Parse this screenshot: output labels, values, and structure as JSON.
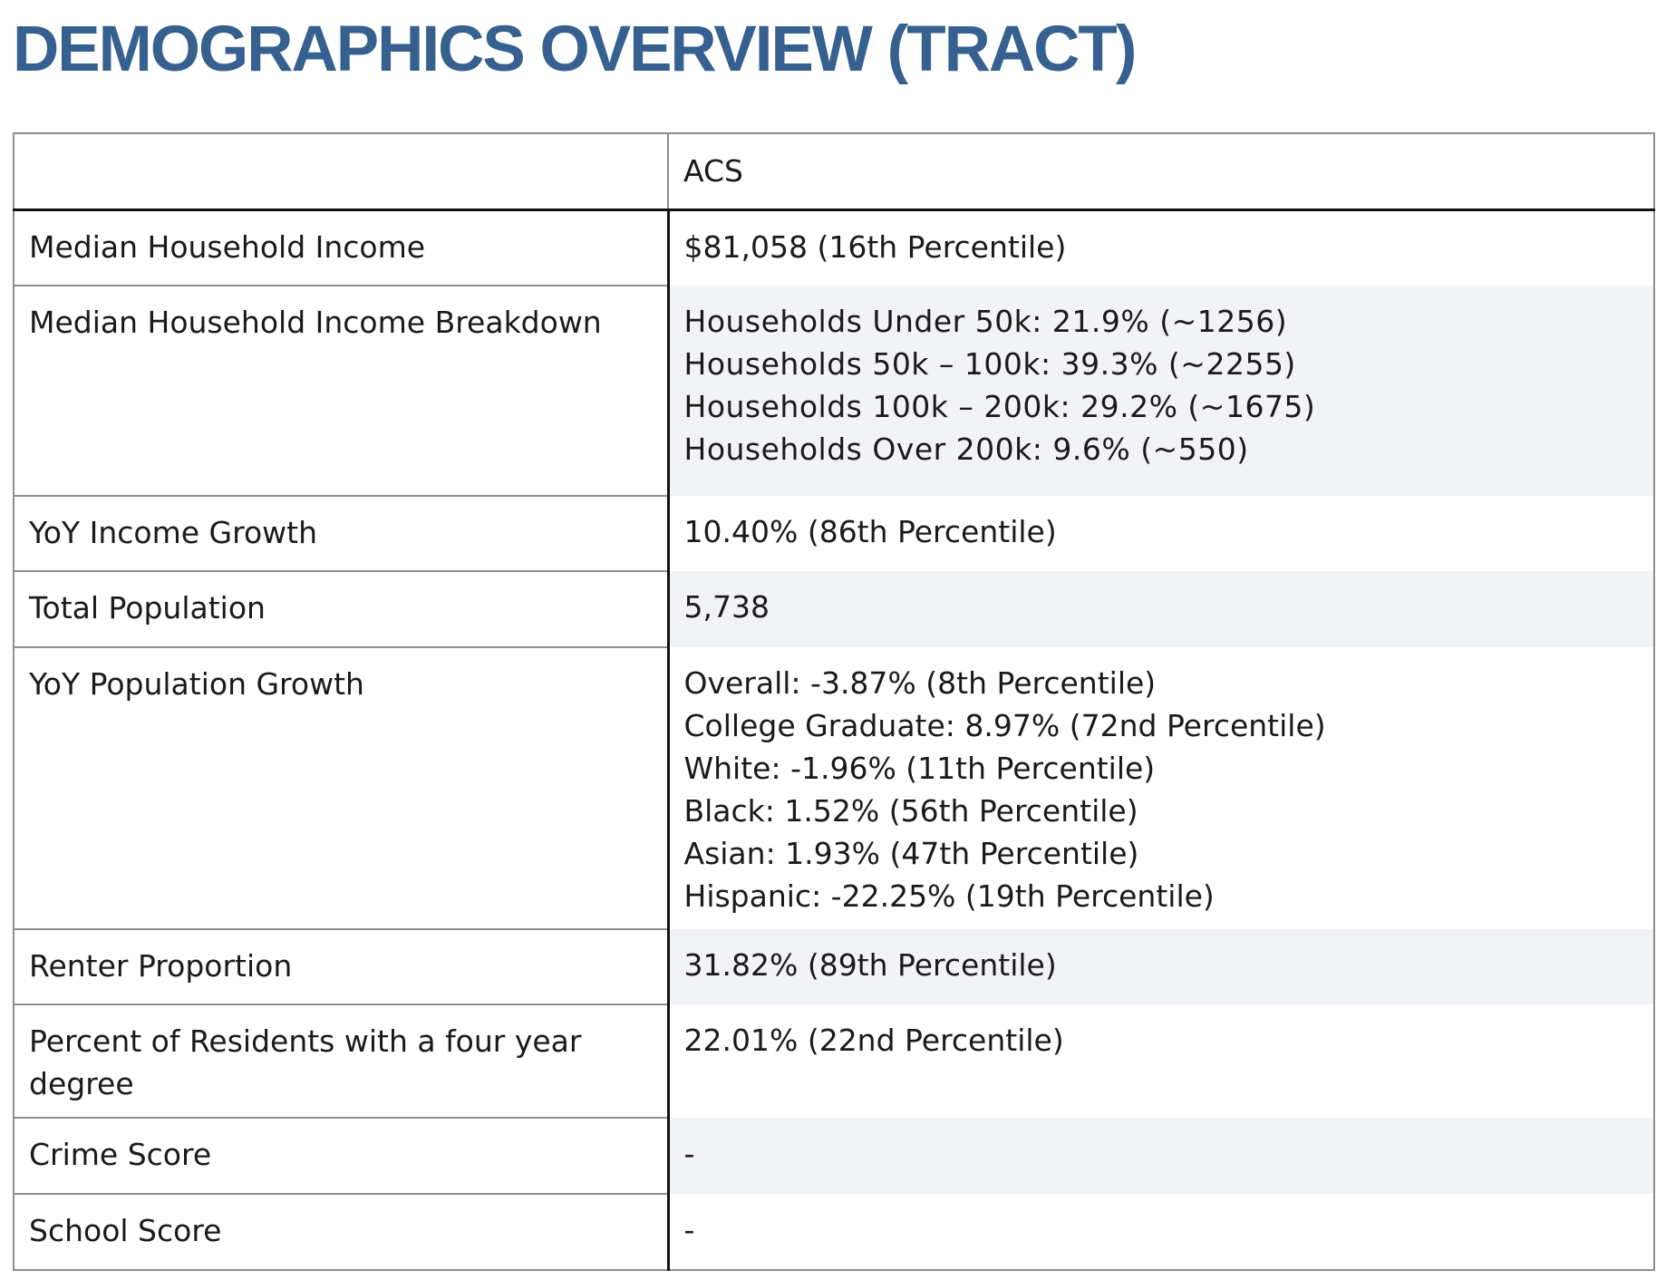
{
  "title": "DEMOGRAPHICS OVERVIEW (TRACT)",
  "table": {
    "header": {
      "label": "",
      "value": "ACS"
    },
    "rows": [
      {
        "label": "Median Household Income",
        "value": "$81,058 (16th Percentile)"
      },
      {
        "label": "Median Household Income Breakdown",
        "lines": [
          "Households Under 50k: 21.9% (~1256)",
          "Households 50k – 100k: 39.3% (~2255)",
          "Households 100k – 200k: 29.2% (~1675)",
          "Households Over 200k: 9.6% (~550)"
        ]
      },
      {
        "label": "YoY Income Growth",
        "value": "10.40% (86th Percentile)"
      },
      {
        "label": "Total Population",
        "value": "5,738"
      },
      {
        "label": "YoY Population Growth",
        "lines": [
          "Overall: -3.87% (8th Percentile)",
          "College Graduate: 8.97% (72nd Percentile)",
          "White: -1.96% (11th Percentile)",
          "Black: 1.52% (56th Percentile)",
          "Asian: 1.93% (47th Percentile)",
          "Hispanic: -22.25% (19th Percentile)"
        ]
      },
      {
        "label": "Renter Proportion",
        "value": "31.82% (89th Percentile)"
      },
      {
        "label": "Percent of Residents with a four year degree",
        "value": "22.01% (22nd Percentile)"
      },
      {
        "label": "Crime Score",
        "value": "-"
      },
      {
        "label": "School Score",
        "value": "-"
      }
    ]
  }
}
